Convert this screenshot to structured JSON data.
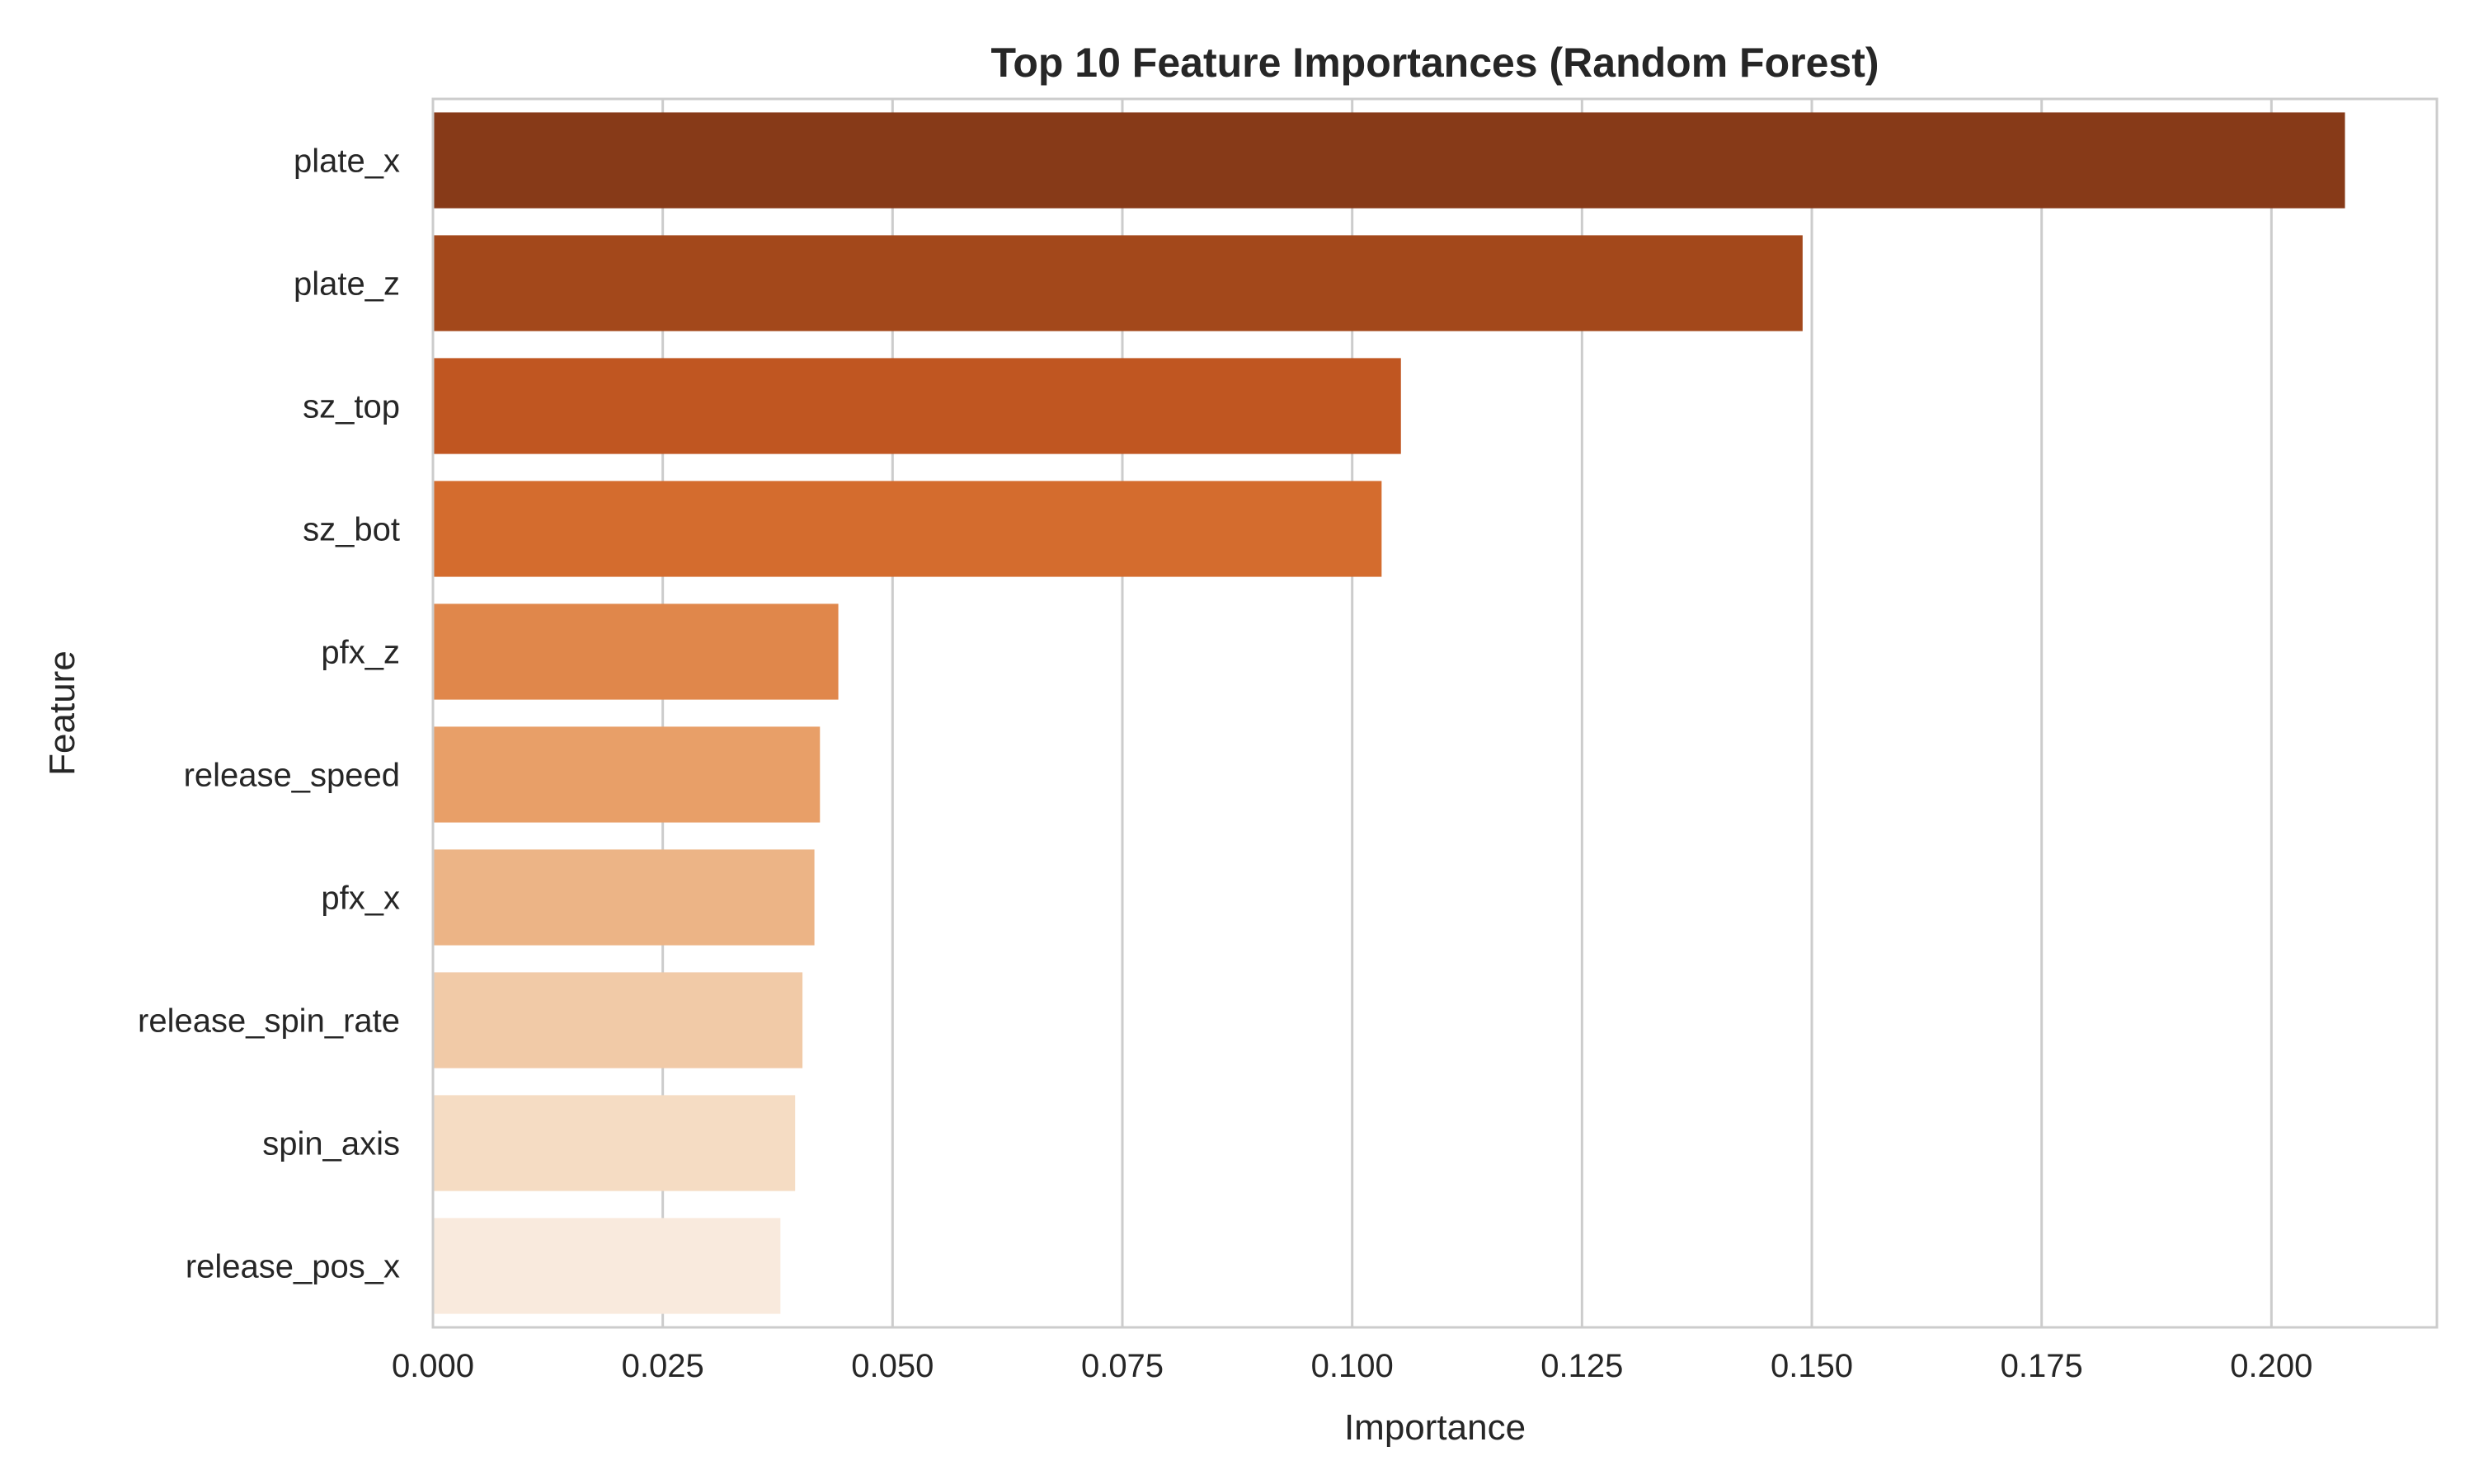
{
  "chart_data": {
    "type": "bar",
    "orientation": "horizontal",
    "title": "Top 10 Feature Importances (Random Forest)",
    "xlabel": "Importance",
    "ylabel": "Feature",
    "xlim": [
      0,
      0.218
    ],
    "xticks": [
      0.0,
      0.025,
      0.05,
      0.075,
      0.1,
      0.125,
      0.15,
      0.175,
      0.2
    ],
    "xtick_labels": [
      "0.000",
      "0.025",
      "0.050",
      "0.075",
      "0.100",
      "0.125",
      "0.150",
      "0.175",
      "0.200"
    ],
    "grid": true,
    "categories": [
      "plate_x",
      "plate_z",
      "sz_top",
      "sz_bot",
      "pfx_z",
      "release_speed",
      "pfx_x",
      "release_spin_rate",
      "spin_axis",
      "release_pos_x"
    ],
    "values": [
      0.208,
      0.149,
      0.1053,
      0.1032,
      0.0441,
      0.0421,
      0.0415,
      0.0402,
      0.0394,
      0.0378
    ],
    "colors": [
      "#873a18",
      "#a3481b",
      "#c05621",
      "#d46c2e",
      "#e0874b",
      "#e89f68",
      "#ecb486",
      "#f1caa7",
      "#f5dcc3",
      "#f9eadd"
    ]
  }
}
